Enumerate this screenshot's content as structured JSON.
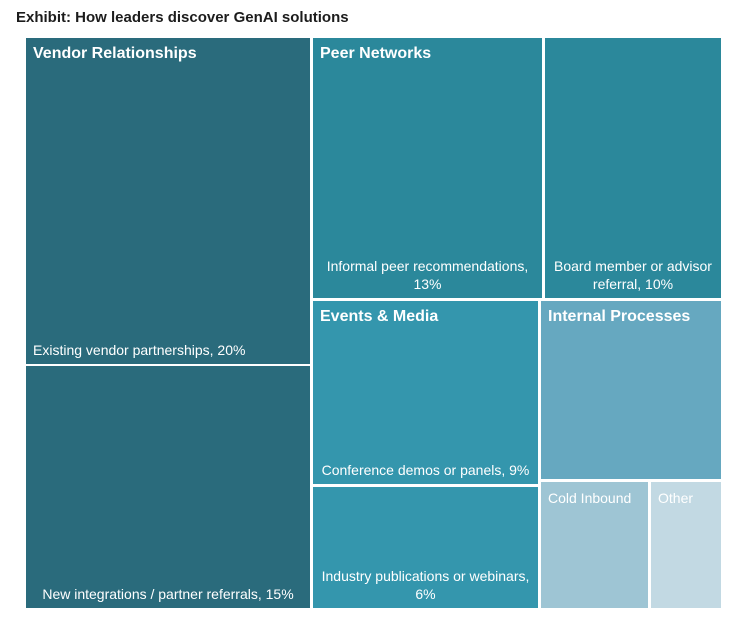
{
  "title": "Exhibit: How leaders discover GenAI solutions",
  "chart_data": {
    "type": "treemap",
    "title": "Exhibit: How leaders discover GenAI solutions",
    "groups": [
      {
        "name": "Vendor Relationships",
        "color": "#2a6b7c",
        "items": [
          {
            "label": "Existing vendor partnerships, 20%",
            "value": 20
          },
          {
            "label": "New integrations / partner referrals, 15%",
            "value": 15
          }
        ]
      },
      {
        "name": "Peer Networks",
        "color": "#2b889b",
        "items": [
          {
            "label": "Informal peer recommendations, 13%",
            "value": 13
          },
          {
            "label": "Board member or advisor referral, 10%",
            "value": 10
          }
        ]
      },
      {
        "name": "Events & Media",
        "color": "#3496ad",
        "items": [
          {
            "label": "Conference demos or panels, 9%",
            "value": 9
          },
          {
            "label": "Industry publications or webinars, 6%",
            "value": 6
          }
        ]
      },
      {
        "name": "Internal Processes",
        "color": "#66a8c0",
        "items": [
          {
            "label": "",
            "value": null
          },
          {
            "label": "Cold Inbound",
            "value": null
          },
          {
            "label": "Other",
            "value": null
          }
        ]
      }
    ],
    "colors": {
      "vendor": "#2a6b7c",
      "peer": "#2b889b",
      "events": "#3496ad",
      "internal": "#66a8c0",
      "cold_inbound": "#9ec5d4",
      "other": "#c2d9e3"
    }
  }
}
